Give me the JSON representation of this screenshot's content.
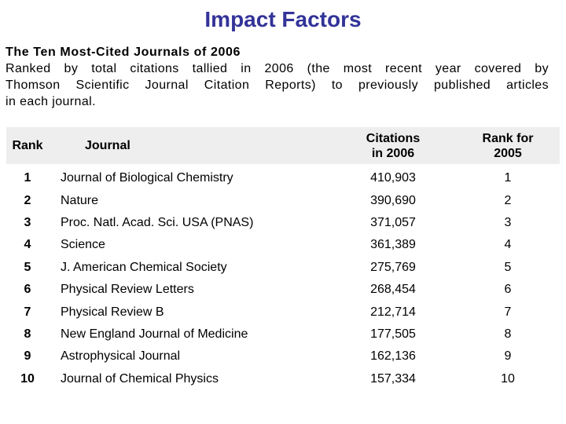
{
  "slide": {
    "title": "Impact Factors",
    "heading": "The Ten Most-Cited Journals of 2006",
    "paragraph_lines": [
      "Ranked by total citations tallied in 2006 (the most recent year covered by",
      "Thomson Scientific Journal Citation Reports) to previously published articles",
      "in each journal."
    ]
  },
  "colors": {
    "background": "#ffffff",
    "text": "#000000",
    "title": "#333399",
    "header_bg": "#eeeeee"
  },
  "table": {
    "headers": {
      "rank": "Rank",
      "journal": "Journal",
      "citations_line1": "Citations",
      "citations_line2": "in 2006",
      "rank2005_line1": "Rank for",
      "rank2005_line2": "2005"
    },
    "rows": [
      {
        "rank": "1",
        "journal": "Journal of Biological Chemistry",
        "citations": "410,903",
        "rank_2005": "1"
      },
      {
        "rank": "2",
        "journal": "Nature",
        "citations": "390,690",
        "rank_2005": "2"
      },
      {
        "rank": "3",
        "journal": "Proc. Natl. Acad. Sci. USA (PNAS)",
        "citations": "371,057",
        "rank_2005": "3"
      },
      {
        "rank": "4",
        "journal": "Science",
        "citations": "361,389",
        "rank_2005": "4"
      },
      {
        "rank": "5",
        "journal": "J. American Chemical Society",
        "citations": "275,769",
        "rank_2005": "5"
      },
      {
        "rank": "6",
        "journal": "Physical Review Letters",
        "citations": "268,454",
        "rank_2005": "6"
      },
      {
        "rank": "7",
        "journal": "Physical Review B",
        "citations": "212,714",
        "rank_2005": "7"
      },
      {
        "rank": "8",
        "journal": "New England Journal of Medicine",
        "citations": "177,505",
        "rank_2005": "8"
      },
      {
        "rank": "9",
        "journal": "Astrophysical Journal",
        "citations": "162,136",
        "rank_2005": "9"
      },
      {
        "rank": "10",
        "journal": "Journal of Chemical Physics",
        "citations": "157,334",
        "rank_2005": "10"
      }
    ]
  }
}
